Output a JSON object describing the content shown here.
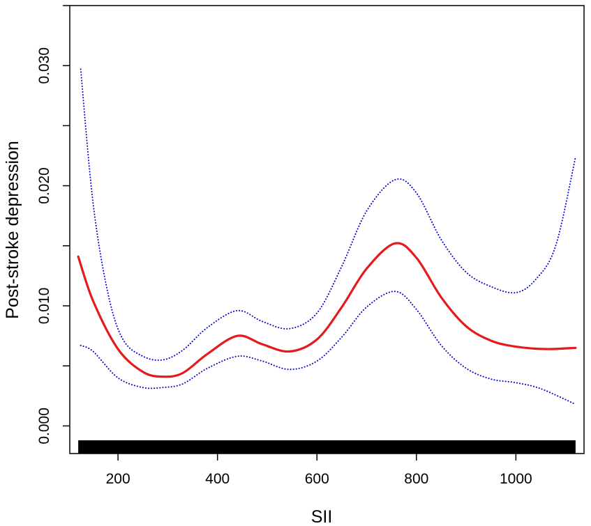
{
  "chart_data": {
    "type": "line",
    "title": "",
    "xlabel": "SII",
    "ylabel": "Post-stroke depression",
    "xlim": [
      103,
      1137
    ],
    "ylim": [
      -0.0023,
      0.035
    ],
    "x_ticks": [
      200,
      400,
      600,
      800,
      1000
    ],
    "x_tick_labels": [
      "200",
      "400",
      "600",
      "800",
      "1000"
    ],
    "y_ticks": [
      0.0,
      0.005,
      0.01,
      0.015,
      0.02,
      0.025,
      0.03,
      0.035
    ],
    "y_tick_labels": [
      "0.000",
      "",
      "0.010",
      "",
      "0.020",
      "",
      "0.030",
      ""
    ],
    "grid": false,
    "legend": "none",
    "series": [
      {
        "role": "estimate",
        "color": "#e41a1c",
        "style": "solid",
        "x": [
          120,
          150,
          200,
          250,
          290,
          330,
          380,
          440,
          490,
          545,
          600,
          650,
          700,
          757,
          800,
          850,
          900,
          950,
          1000,
          1060,
          1120
        ],
        "y": [
          0.0141,
          0.0104,
          0.0064,
          0.0045,
          0.0041,
          0.0044,
          0.006,
          0.0075,
          0.0068,
          0.0062,
          0.0072,
          0.0099,
          0.0131,
          0.0152,
          0.014,
          0.0107,
          0.0083,
          0.0071,
          0.0066,
          0.0064,
          0.0065
        ]
      },
      {
        "role": "upper-95ci",
        "color": "#0000cc",
        "style": "dotted",
        "x": [
          125,
          150,
          180,
          210,
          250,
          290,
          330,
          380,
          440,
          490,
          545,
          600,
          650,
          700,
          757,
          800,
          850,
          900,
          950,
          1000,
          1040,
          1080,
          1120
        ],
        "y": [
          0.0297,
          0.0185,
          0.011,
          0.0072,
          0.0058,
          0.0055,
          0.0063,
          0.0082,
          0.0096,
          0.0087,
          0.0081,
          0.0094,
          0.0133,
          0.0179,
          0.0205,
          0.0194,
          0.0155,
          0.0128,
          0.0116,
          0.0111,
          0.0122,
          0.015,
          0.0224
        ]
      },
      {
        "role": "lower-95ci",
        "color": "#0000cc",
        "style": "dotted",
        "x": [
          125,
          150,
          200,
          250,
          290,
          330,
          380,
          440,
          490,
          545,
          600,
          650,
          700,
          757,
          800,
          850,
          900,
          950,
          1000,
          1050,
          1120
        ],
        "y": [
          0.0067,
          0.0062,
          0.004,
          0.0032,
          0.0032,
          0.0035,
          0.0048,
          0.0058,
          0.0054,
          0.0047,
          0.0054,
          0.0074,
          0.0099,
          0.0112,
          0.0097,
          0.0067,
          0.0048,
          0.0039,
          0.0036,
          0.0031,
          0.0018
        ]
      }
    ],
    "rug": {
      "x_start": 120,
      "x_end": 1120,
      "color": "#000000"
    }
  }
}
